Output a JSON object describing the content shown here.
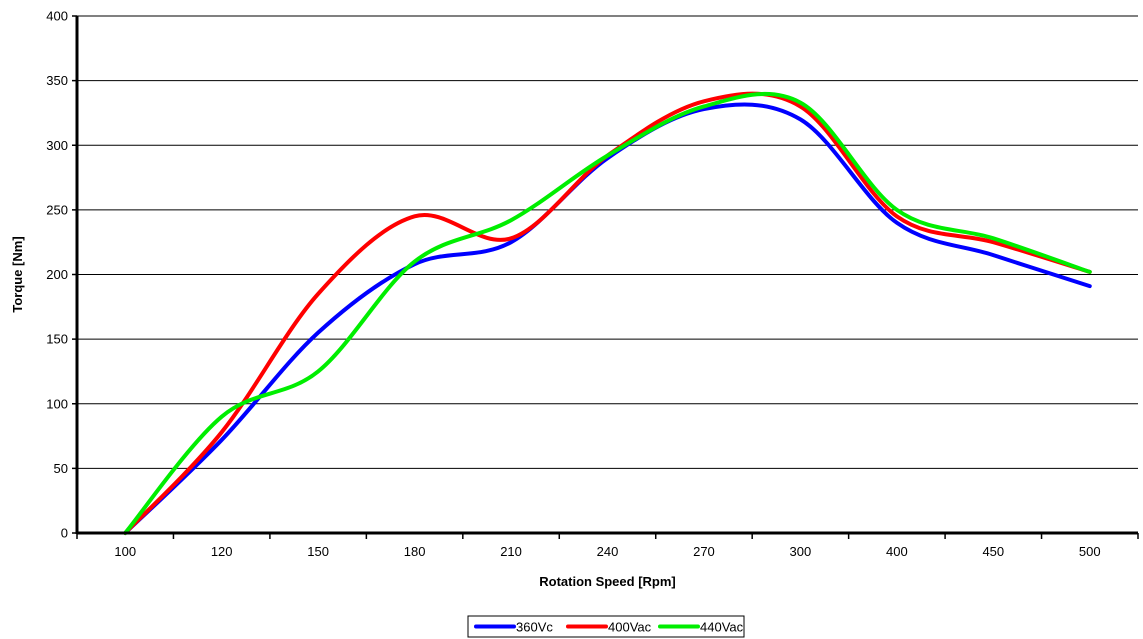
{
  "chart_data": {
    "type": "line",
    "title": "",
    "xlabel": "Rotation Speed [Rpm]",
    "ylabel": "Torque [Nm]",
    "categories": [
      "100",
      "120",
      "150",
      "180",
      "210",
      "240",
      "270",
      "300",
      "400",
      "450",
      "500"
    ],
    "ylim": [
      0,
      400
    ],
    "yticks": [
      "0",
      "50",
      "100",
      "150",
      "200",
      "250",
      "300",
      "350",
      "400"
    ],
    "grid": "horizontal",
    "legend_position": "bottom",
    "series": [
      {
        "name": "360Vc",
        "color": "#0000ff",
        "values": [
          0,
          72,
          155,
          208,
          225,
          290,
          328,
          320,
          240,
          215,
          191
        ]
      },
      {
        "name": "400Vac",
        "color": "#ff0000",
        "values": [
          0,
          78,
          185,
          245,
          228,
          292,
          334,
          330,
          245,
          225,
          202
        ]
      },
      {
        "name": "440Vac",
        "color": "#00ee00",
        "values": [
          0,
          90,
          125,
          210,
          242,
          292,
          330,
          333,
          250,
          228,
          202
        ]
      }
    ]
  }
}
